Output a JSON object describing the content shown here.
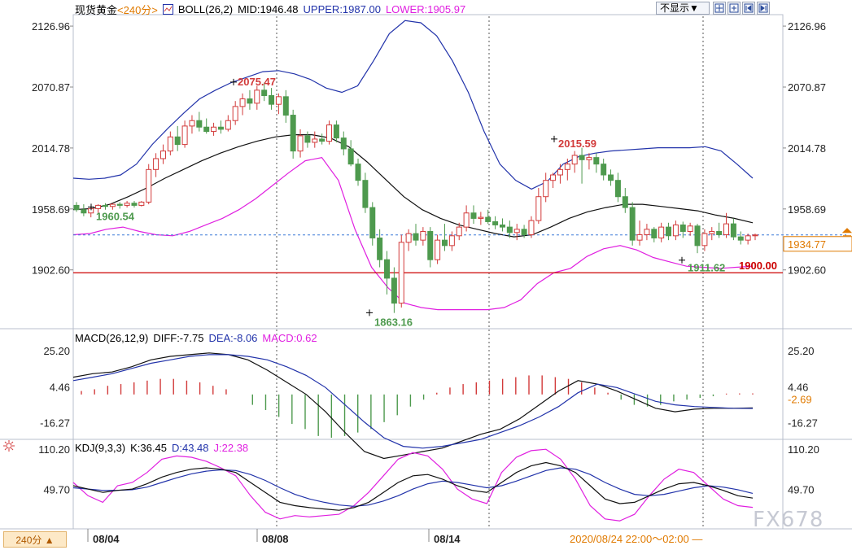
{
  "header": {
    "instrument": "现货黄金",
    "period_tag": "<240分>",
    "indicator": "BOLL(26,2)",
    "mid": "MID:1946.48",
    "upper": "UPPER:1987.00",
    "lower": "LOWER:1905.97",
    "hide_label": "不显示▼"
  },
  "macd_panel": {
    "title": "MACD(26,12,9)",
    "diff": "DIFF:-7.75",
    "dea": "DEA:-8.06",
    "macd": "MACD:0.62",
    "ticks": [
      "25.20",
      "4.46",
      "-16.27"
    ],
    "current": "-2.69"
  },
  "kdj_panel": {
    "title": "KDJ(9,3,3)",
    "k": "K:36.45",
    "d": "D:43.48",
    "j": "J:22.38",
    "ticks": [
      "110.20",
      "49.70"
    ]
  },
  "price_axis": {
    "ticks": [
      "2126.96",
      "2070.87",
      "2014.78",
      "1958.69",
      "1902.60"
    ],
    "current_price": "1934.77"
  },
  "annotations": {
    "high1": "2075.47",
    "low_open": "1960.54",
    "low1": "1863.16",
    "high2": "2015.59",
    "low2": "1911.62",
    "support": "1900.00"
  },
  "x_axis": {
    "labels": [
      "08/04",
      "08/08",
      "08/14"
    ],
    "range_label": "2020/08/24 22:00～02:00 —"
  },
  "footer": {
    "period_button": "240分 ▲"
  },
  "watermark": "FX678",
  "colors": {
    "up": "#d23a3a",
    "down": "#4e9a4e",
    "upper_band": "#2233aa",
    "mid_band": "#111111",
    "lower_band": "#e020e0",
    "support_line": "#cc0000",
    "current_line": "#3a78d8"
  },
  "chart_data": {
    "type": "candlestick",
    "price_axis_ticks": [
      2126.96,
      2070.87,
      2014.78,
      1958.69,
      1902.6
    ],
    "candles": [
      {
        "o": 1962,
        "h": 1965,
        "l": 1956,
        "c": 1958
      },
      {
        "o": 1958,
        "h": 1963,
        "l": 1952,
        "c": 1955
      },
      {
        "o": 1955,
        "h": 1961,
        "l": 1951,
        "c": 1959
      },
      {
        "o": 1959,
        "h": 1963,
        "l": 1955,
        "c": 1962
      },
      {
        "o": 1962,
        "h": 1964,
        "l": 1958,
        "c": 1961
      },
      {
        "o": 1961,
        "h": 1964,
        "l": 1958,
        "c": 1963
      },
      {
        "o": 1963,
        "h": 1965,
        "l": 1959,
        "c": 1962
      },
      {
        "o": 1962,
        "h": 1966,
        "l": 1960,
        "c": 1964
      },
      {
        "o": 1964,
        "h": 1966,
        "l": 1960,
        "c": 1962
      },
      {
        "o": 1962,
        "h": 1966,
        "l": 1961,
        "c": 1965
      },
      {
        "o": 1965,
        "h": 2000,
        "l": 1963,
        "c": 1995
      },
      {
        "o": 1995,
        "h": 2010,
        "l": 1988,
        "c": 2005
      },
      {
        "o": 2005,
        "h": 2018,
        "l": 2000,
        "c": 2012
      },
      {
        "o": 2012,
        "h": 2030,
        "l": 2008,
        "c": 2025
      },
      {
        "o": 2025,
        "h": 2035,
        "l": 2012,
        "c": 2018
      },
      {
        "o": 2018,
        "h": 2040,
        "l": 2015,
        "c": 2035
      },
      {
        "o": 2035,
        "h": 2045,
        "l": 2028,
        "c": 2040
      },
      {
        "o": 2040,
        "h": 2048,
        "l": 2030,
        "c": 2034
      },
      {
        "o": 2034,
        "h": 2042,
        "l": 2028,
        "c": 2030
      },
      {
        "o": 2030,
        "h": 2038,
        "l": 2026,
        "c": 2034
      },
      {
        "o": 2034,
        "h": 2040,
        "l": 2028,
        "c": 2032
      },
      {
        "o": 2032,
        "h": 2045,
        "l": 2030,
        "c": 2040
      },
      {
        "o": 2040,
        "h": 2058,
        "l": 2036,
        "c": 2053
      },
      {
        "o": 2053,
        "h": 2065,
        "l": 2045,
        "c": 2060
      },
      {
        "o": 2060,
        "h": 2068,
        "l": 2050,
        "c": 2056
      },
      {
        "o": 2056,
        "h": 2072,
        "l": 2050,
        "c": 2068
      },
      {
        "o": 2068,
        "h": 2075,
        "l": 2058,
        "c": 2063
      },
      {
        "o": 2063,
        "h": 2070,
        "l": 2050,
        "c": 2055
      },
      {
        "o": 2055,
        "h": 2065,
        "l": 2046,
        "c": 2062
      },
      {
        "o": 2062,
        "h": 2068,
        "l": 2038,
        "c": 2045
      },
      {
        "o": 2045,
        "h": 2050,
        "l": 2005,
        "c": 2012
      },
      {
        "o": 2012,
        "h": 2032,
        "l": 2006,
        "c": 2026
      },
      {
        "o": 2026,
        "h": 2030,
        "l": 2015,
        "c": 2020
      },
      {
        "o": 2020,
        "h": 2030,
        "l": 2015,
        "c": 2023
      },
      {
        "o": 2023,
        "h": 2028,
        "l": 2018,
        "c": 2021
      },
      {
        "o": 2021,
        "h": 2040,
        "l": 2018,
        "c": 2036
      },
      {
        "o": 2036,
        "h": 2040,
        "l": 2020,
        "c": 2024
      },
      {
        "o": 2024,
        "h": 2030,
        "l": 2008,
        "c": 2014
      },
      {
        "o": 2014,
        "h": 2022,
        "l": 1998,
        "c": 2000
      },
      {
        "o": 2000,
        "h": 2005,
        "l": 1980,
        "c": 1985
      },
      {
        "o": 1985,
        "h": 1992,
        "l": 1955,
        "c": 1960
      },
      {
        "o": 1960,
        "h": 1965,
        "l": 1925,
        "c": 1932
      },
      {
        "o": 1932,
        "h": 1940,
        "l": 1905,
        "c": 1912
      },
      {
        "o": 1912,
        "h": 1920,
        "l": 1880,
        "c": 1895
      },
      {
        "o": 1895,
        "h": 1905,
        "l": 1863,
        "c": 1872
      },
      {
        "o": 1872,
        "h": 1935,
        "l": 1868,
        "c": 1928
      },
      {
        "o": 1928,
        "h": 1940,
        "l": 1920,
        "c": 1936
      },
      {
        "o": 1936,
        "h": 1945,
        "l": 1925,
        "c": 1930
      },
      {
        "o": 1930,
        "h": 1942,
        "l": 1925,
        "c": 1938
      },
      {
        "o": 1938,
        "h": 1942,
        "l": 1905,
        "c": 1912
      },
      {
        "o": 1912,
        "h": 1935,
        "l": 1908,
        "c": 1930
      },
      {
        "o": 1930,
        "h": 1945,
        "l": 1920,
        "c": 1925
      },
      {
        "o": 1925,
        "h": 1938,
        "l": 1920,
        "c": 1934
      },
      {
        "o": 1934,
        "h": 1946,
        "l": 1930,
        "c": 1942
      },
      {
        "o": 1942,
        "h": 1962,
        "l": 1938,
        "c": 1955
      },
      {
        "o": 1955,
        "h": 1962,
        "l": 1945,
        "c": 1950
      },
      {
        "o": 1950,
        "h": 1956,
        "l": 1944,
        "c": 1951
      },
      {
        "o": 1951,
        "h": 1958,
        "l": 1945,
        "c": 1947
      },
      {
        "o": 1947,
        "h": 1952,
        "l": 1940,
        "c": 1944
      },
      {
        "o": 1944,
        "h": 1950,
        "l": 1938,
        "c": 1942
      },
      {
        "o": 1942,
        "h": 1948,
        "l": 1932,
        "c": 1937
      },
      {
        "o": 1937,
        "h": 1945,
        "l": 1930,
        "c": 1940
      },
      {
        "o": 1940,
        "h": 1944,
        "l": 1932,
        "c": 1935
      },
      {
        "o": 1935,
        "h": 1952,
        "l": 1932,
        "c": 1948
      },
      {
        "o": 1948,
        "h": 1978,
        "l": 1945,
        "c": 1970
      },
      {
        "o": 1970,
        "h": 1992,
        "l": 1965,
        "c": 1985
      },
      {
        "o": 1985,
        "h": 1992,
        "l": 1978,
        "c": 1990
      },
      {
        "o": 1990,
        "h": 2000,
        "l": 1982,
        "c": 1995
      },
      {
        "o": 1995,
        "h": 2005,
        "l": 1985,
        "c": 2000
      },
      {
        "o": 2000,
        "h": 2012,
        "l": 1992,
        "c": 2008
      },
      {
        "o": 2008,
        "h": 2015,
        "l": 1982,
        "c": 2004
      },
      {
        "o": 2004,
        "h": 2010,
        "l": 1995,
        "c": 2006
      },
      {
        "o": 2006,
        "h": 2010,
        "l": 1992,
        "c": 2000
      },
      {
        "o": 2000,
        "h": 2005,
        "l": 1985,
        "c": 1990
      },
      {
        "o": 1990,
        "h": 1995,
        "l": 1980,
        "c": 1985
      },
      {
        "o": 1985,
        "h": 1992,
        "l": 1965,
        "c": 1970
      },
      {
        "o": 1970,
        "h": 1978,
        "l": 1955,
        "c": 1960
      },
      {
        "o": 1960,
        "h": 1965,
        "l": 1925,
        "c": 1930
      },
      {
        "o": 1930,
        "h": 1948,
        "l": 1925,
        "c": 1935
      },
      {
        "o": 1935,
        "h": 1945,
        "l": 1930,
        "c": 1940
      },
      {
        "o": 1940,
        "h": 1942,
        "l": 1928,
        "c": 1932
      },
      {
        "o": 1932,
        "h": 1946,
        "l": 1928,
        "c": 1942
      },
      {
        "o": 1942,
        "h": 1946,
        "l": 1930,
        "c": 1934
      },
      {
        "o": 1934,
        "h": 1948,
        "l": 1930,
        "c": 1944
      },
      {
        "o": 1944,
        "h": 1947,
        "l": 1932,
        "c": 1938
      },
      {
        "o": 1938,
        "h": 1946,
        "l": 1934,
        "c": 1943
      },
      {
        "o": 1943,
        "h": 1945,
        "l": 1918,
        "c": 1925
      },
      {
        "o": 1925,
        "h": 1940,
        "l": 1920,
        "c": 1936
      },
      {
        "o": 1936,
        "h": 1942,
        "l": 1930,
        "c": 1938
      },
      {
        "o": 1938,
        "h": 1946,
        "l": 1932,
        "c": 1935
      },
      {
        "o": 1935,
        "h": 1955,
        "l": 1932,
        "c": 1945
      },
      {
        "o": 1945,
        "h": 1950,
        "l": 1930,
        "c": 1933
      },
      {
        "o": 1933,
        "h": 1938,
        "l": 1926,
        "c": 1930
      },
      {
        "o": 1930,
        "h": 1936,
        "l": 1926,
        "c": 1934
      },
      {
        "o": 1934,
        "h": 1936,
        "l": 1930,
        "c": 1934.77
      }
    ],
    "boll_upper": [
      1987,
      1986,
      1987,
      1990,
      2000,
      2018,
      2033,
      2047,
      2060,
      2068,
      2075,
      2080,
      2085,
      2086,
      2083,
      2078,
      2070,
      2066,
      2072,
      2095,
      2120,
      2132,
      2130,
      2118,
      2095,
      2066,
      2030,
      2000,
      1985,
      1977,
      1984,
      2000,
      2007,
      2010,
      2012,
      2013,
      2014,
      2015,
      2015,
      2015,
      2016,
      2012,
      2000,
      1987
    ],
    "boll_mid": [
      1958,
      1959,
      1963,
      1970,
      1978,
      1987,
      1995,
      2003,
      2010,
      2016,
      2021,
      2025,
      2027,
      2027,
      2024,
      2016,
      2002,
      1986,
      1970,
      1958,
      1950,
      1944,
      1940,
      1936,
      1933,
      1935,
      1942,
      1950,
      1956,
      1960,
      1963,
      1963,
      1961,
      1959,
      1957,
      1953,
      1950,
      1946
    ],
    "boll_lower": [
      1935,
      1936,
      1940,
      1942,
      1938,
      1935,
      1934,
      1938,
      1944,
      1950,
      1958,
      1968,
      1980,
      1992,
      2003,
      2006,
      1985,
      1940,
      1905,
      1886,
      1872,
      1868,
      1866,
      1866,
      1866,
      1866,
      1868,
      1875,
      1890,
      1900,
      1904,
      1915,
      1922,
      1925,
      1921,
      1914,
      1910,
      1906,
      1905,
      1904,
      1905,
      1906
    ],
    "support_level": 1900.0,
    "macd": {
      "ticks": [
        25.2,
        4.46,
        -16.27
      ],
      "diff": [
        10,
        12,
        13,
        16,
        20,
        22,
        23,
        24,
        23,
        20,
        14,
        7,
        0,
        -10,
        -22,
        -33,
        -37,
        -35,
        -33,
        -31,
        -27,
        -23,
        -20,
        -14,
        -6,
        2,
        8,
        6,
        2,
        -3,
        -8,
        -10,
        -8.5,
        -8,
        -8,
        -7.75
      ],
      "dea": [
        8,
        10,
        12,
        15,
        18,
        20,
        22,
        23,
        23,
        22,
        20,
        16,
        11,
        4,
        -6,
        -16,
        -25,
        -30,
        -31,
        -30,
        -28,
        -26,
        -22,
        -18,
        -13,
        -7,
        1,
        6,
        4,
        0,
        -4,
        -6,
        -7,
        -7.5,
        -8,
        -8.06
      ],
      "hist": [
        2,
        3,
        5,
        6,
        7,
        8,
        9,
        9,
        8,
        7,
        5,
        3,
        0,
        -6,
        -9,
        -13,
        -17,
        -20,
        -24,
        -25,
        -24,
        -22,
        -20,
        -16,
        -12,
        -7,
        -3,
        1,
        4,
        6,
        7,
        8,
        9,
        10,
        11,
        11,
        10,
        9,
        7,
        4,
        1,
        -3,
        -6,
        -7,
        -6,
        -4,
        -3,
        -2,
        -1,
        0.5,
        0.6,
        0.62
      ]
    },
    "kdj": {
      "ticks": [
        110.2,
        49.7
      ],
      "k": [
        55,
        50,
        45,
        48,
        50,
        58,
        68,
        75,
        80,
        82,
        80,
        75,
        60,
        45,
        30,
        25,
        22,
        20,
        18,
        22,
        30,
        45,
        60,
        70,
        72,
        65,
        55,
        48,
        45,
        60,
        75,
        85,
        90,
        85,
        75,
        55,
        35,
        28,
        30,
        40,
        50,
        58,
        60,
        55,
        48,
        40,
        36.45
      ],
      "d": [
        52,
        50,
        48,
        48,
        49,
        53,
        60,
        67,
        73,
        77,
        79,
        78,
        72,
        63,
        52,
        42,
        35,
        30,
        26,
        24,
        26,
        32,
        40,
        50,
        58,
        62,
        60,
        56,
        52,
        55,
        62,
        70,
        78,
        82,
        80,
        72,
        60,
        50,
        42,
        40,
        42,
        47,
        52,
        55,
        53,
        49,
        43.48
      ],
      "j": [
        60,
        40,
        30,
        55,
        60,
        75,
        95,
        100,
        98,
        92,
        82,
        70,
        40,
        15,
        5,
        10,
        8,
        10,
        12,
        25,
        45,
        70,
        95,
        105,
        100,
        80,
        50,
        35,
        28,
        75,
        98,
        108,
        110,
        95,
        65,
        25,
        5,
        2,
        12,
        40,
        65,
        80,
        75,
        55,
        35,
        25,
        22.38
      ]
    }
  }
}
